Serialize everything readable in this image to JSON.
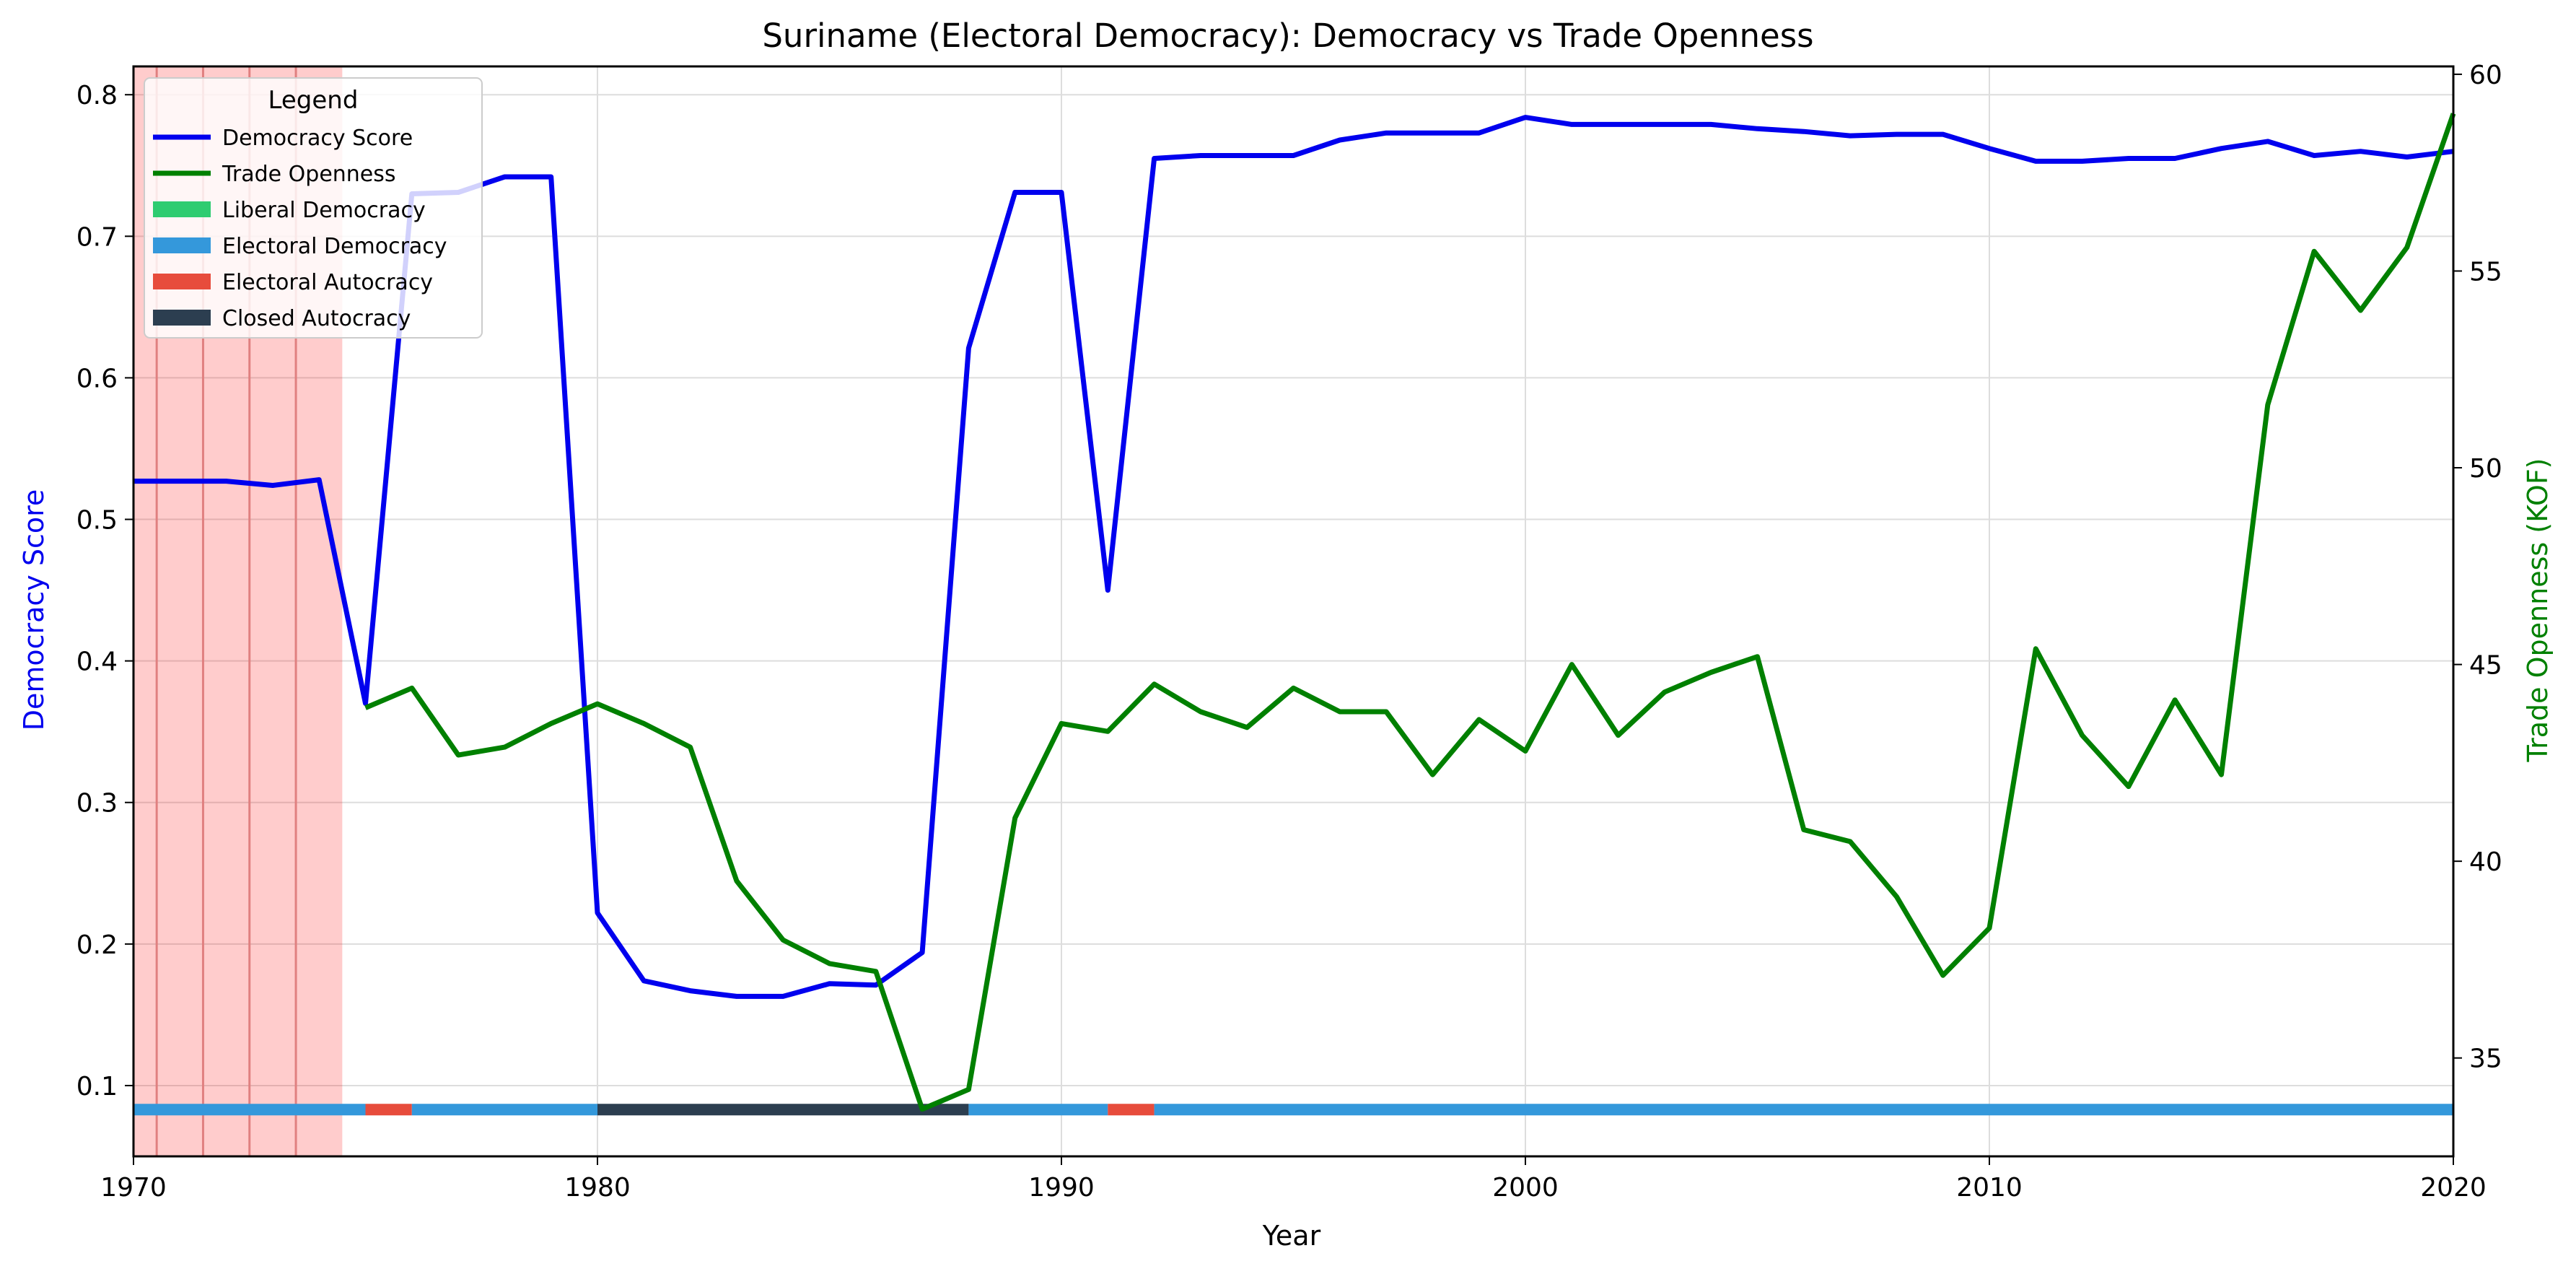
{
  "chart_data": {
    "type": "line",
    "title": "Suriname (Electoral Democracy): Democracy vs Trade Openness",
    "xlabel": "Year",
    "ylabel_left": "Democracy Score",
    "ylabel_right": "Trade Openness (KOF)",
    "xlim": [
      1970,
      2020
    ],
    "ylim_left": [
      0.05,
      0.82
    ],
    "ylim_right": [
      32.5,
      60.2
    ],
    "grid": true,
    "x_ticks": [
      1970,
      1980,
      1990,
      2000,
      2010,
      2020
    ],
    "y_left_ticks": [
      "0.1",
      "0.2",
      "0.3",
      "0.4",
      "0.5",
      "0.6",
      "0.7",
      "0.8"
    ],
    "y_right_ticks": [
      "35",
      "40",
      "45",
      "50",
      "55",
      "60"
    ],
    "legend": {
      "title": "Legend",
      "placement": "top-left",
      "entries": [
        {
          "label": "Democracy Score",
          "color": "#0000ee",
          "kind": "line"
        },
        {
          "label": "Trade Openness",
          "color": "#008000",
          "kind": "line"
        },
        {
          "label": "Liberal Democracy",
          "color": "#2ecc71",
          "kind": "patch"
        },
        {
          "label": "Electoral Democracy",
          "color": "#3498db",
          "kind": "patch"
        },
        {
          "label": "Electoral Autocracy",
          "color": "#e74c3c",
          "kind": "patch"
        },
        {
          "label": "Closed Autocracy",
          "color": "#2c3e50",
          "kind": "patch"
        }
      ]
    },
    "series": [
      {
        "name": "Democracy Score",
        "axis": "left",
        "color": "#0000ee",
        "x": [
          1970,
          1971,
          1972,
          1973,
          1974,
          1975,
          1976,
          1977,
          1978,
          1979,
          1980,
          1981,
          1982,
          1983,
          1984,
          1985,
          1986,
          1987,
          1988,
          1989,
          1990,
          1991,
          1992,
          1993,
          1994,
          1995,
          1996,
          1997,
          1998,
          1999,
          2000,
          2001,
          2002,
          2003,
          2004,
          2005,
          2006,
          2007,
          2008,
          2009,
          2010,
          2011,
          2012,
          2013,
          2014,
          2015,
          2016,
          2017,
          2018,
          2019,
          2020
        ],
        "values": [
          0.527,
          0.527,
          0.527,
          0.524,
          0.528,
          0.37,
          0.73,
          0.731,
          0.742,
          0.742,
          0.222,
          0.174,
          0.167,
          0.163,
          0.163,
          0.172,
          0.171,
          0.194,
          0.621,
          0.731,
          0.731,
          0.45,
          0.755,
          0.757,
          0.757,
          0.757,
          0.768,
          0.773,
          0.773,
          0.773,
          0.784,
          0.779,
          0.779,
          0.779,
          0.779,
          0.776,
          0.774,
          0.771,
          0.772,
          0.772,
          0.762,
          0.753,
          0.753,
          0.755,
          0.755,
          0.762,
          0.767,
          0.757,
          0.76,
          0.756,
          0.76
        ]
      },
      {
        "name": "Trade Openness",
        "axis": "right",
        "color": "#008000",
        "x": [
          1975,
          1976,
          1977,
          1978,
          1979,
          1980,
          1981,
          1982,
          1983,
          1984,
          1985,
          1986,
          1987,
          1988,
          1989,
          1990,
          1991,
          1992,
          1993,
          1994,
          1995,
          1996,
          1997,
          1998,
          1999,
          2000,
          2001,
          2002,
          2003,
          2004,
          2005,
          2006,
          2007,
          2008,
          2009,
          2010,
          2011,
          2012,
          2013,
          2014,
          2015,
          2016,
          2017,
          2018,
          2019,
          2020
        ],
        "values": [
          43.9,
          44.4,
          42.7,
          42.9,
          43.5,
          44.0,
          43.5,
          42.9,
          39.5,
          38.0,
          37.4,
          37.2,
          33.7,
          34.2,
          41.1,
          43.5,
          43.3,
          44.5,
          43.8,
          43.4,
          44.4,
          43.8,
          43.8,
          42.2,
          43.6,
          42.8,
          45.0,
          43.2,
          44.3,
          44.8,
          45.2,
          40.8,
          40.5,
          39.1,
          37.1,
          38.3,
          45.4,
          43.2,
          41.9,
          44.1,
          42.2,
          51.6,
          55.5,
          54.0,
          55.6,
          59.0
        ]
      }
    ],
    "regime_bar": {
      "y": 0.083,
      "segments": [
        {
          "start": 1970,
          "end": 1975,
          "regime": "Electoral Democracy",
          "color": "#3498db"
        },
        {
          "start": 1975,
          "end": 1976,
          "regime": "Electoral Autocracy",
          "color": "#e74c3c"
        },
        {
          "start": 1976,
          "end": 1980,
          "regime": "Electoral Democracy",
          "color": "#3498db"
        },
        {
          "start": 1980,
          "end": 1988,
          "regime": "Closed Autocracy",
          "color": "#2c3e50"
        },
        {
          "start": 1988,
          "end": 1991,
          "regime": "Electoral Democracy",
          "color": "#3498db"
        },
        {
          "start": 1991,
          "end": 1992,
          "regime": "Electoral Autocracy",
          "color": "#e74c3c"
        },
        {
          "start": 1992,
          "end": 2020,
          "regime": "Electoral Democracy",
          "color": "#3498db"
        }
      ]
    },
    "shaded_region": {
      "start": 1970,
      "end": 1974.5,
      "color": "#ff0000",
      "opacity": 0.2
    },
    "event_lines": [
      1970.5,
      1971.5,
      1972.5,
      1973.5
    ]
  }
}
